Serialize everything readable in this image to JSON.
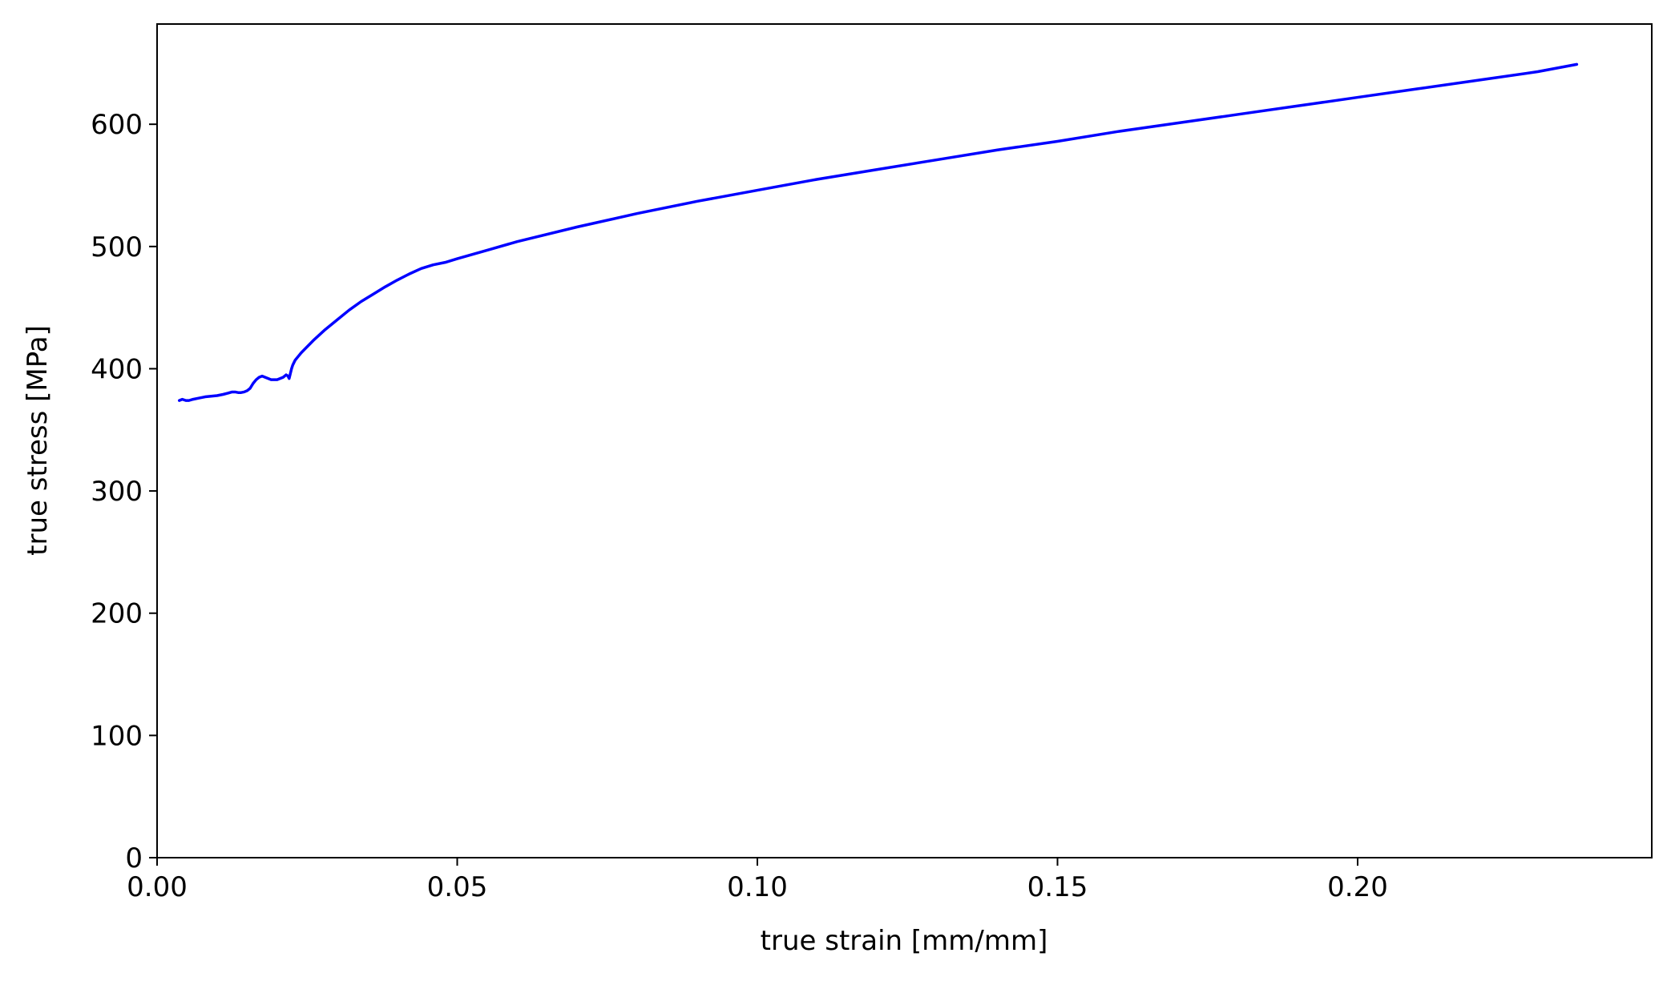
{
  "chart_data": {
    "type": "line",
    "title": "",
    "xlabel": "true strain [mm/mm]",
    "ylabel": "true stress [MPa]",
    "xlim": [
      0.0,
      0.249
    ],
    "ylim": [
      0,
      682
    ],
    "xticks": [
      "0.00",
      "0.05",
      "0.10",
      "0.15",
      "0.20"
    ],
    "xtick_values": [
      0.0,
      0.05,
      0.1,
      0.15,
      0.2
    ],
    "yticks": [
      "0",
      "100",
      "200",
      "300",
      "400",
      "500",
      "600"
    ],
    "ytick_values": [
      0,
      100,
      200,
      300,
      400,
      500,
      600
    ],
    "grid": false,
    "series": [
      {
        "color": "#0000ff",
        "x": [
          0.0037,
          0.0042,
          0.0048,
          0.0053,
          0.006,
          0.007,
          0.008,
          0.009,
          0.01,
          0.011,
          0.0118,
          0.0125,
          0.013,
          0.0135,
          0.014,
          0.0145,
          0.015,
          0.0155,
          0.016,
          0.0165,
          0.017,
          0.0175,
          0.018,
          0.0185,
          0.019,
          0.0195,
          0.02,
          0.0205,
          0.021,
          0.0215,
          0.0218,
          0.022,
          0.0222,
          0.0224,
          0.0226,
          0.0228,
          0.023,
          0.0235,
          0.024,
          0.025,
          0.026,
          0.028,
          0.03,
          0.032,
          0.034,
          0.036,
          0.038,
          0.04,
          0.042,
          0.044,
          0.046,
          0.048,
          0.05,
          0.055,
          0.06,
          0.07,
          0.08,
          0.09,
          0.1,
          0.11,
          0.12,
          0.13,
          0.14,
          0.15,
          0.16,
          0.17,
          0.18,
          0.19,
          0.2,
          0.21,
          0.22,
          0.23,
          0.2365
        ],
        "y": [
          374,
          375,
          374,
          374,
          375,
          376,
          377,
          377.5,
          378,
          379,
          380,
          381,
          381,
          380.5,
          380.5,
          381,
          382,
          384,
          388,
          391,
          393,
          394,
          393,
          392,
          391,
          391,
          391,
          392,
          393,
          395,
          394,
          392,
          396,
          400,
          403,
          405,
          407,
          410,
          413,
          418,
          423,
          432,
          440,
          448,
          455,
          461,
          467,
          472.5,
          477.5,
          482,
          485,
          487,
          490,
          497,
          504,
          516,
          527,
          537,
          546,
          555,
          563,
          571,
          579,
          586,
          594,
          601,
          608,
          615,
          622,
          629,
          636,
          643,
          649
        ]
      }
    ]
  }
}
